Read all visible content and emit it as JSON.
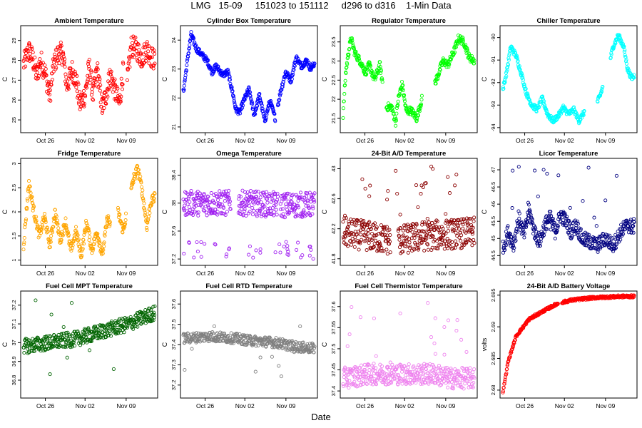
{
  "page": {
    "title": "LMG   15-09     151023 to 151112     d296 to d316    1-Min Data",
    "xlabel": "Date"
  },
  "chart_data": [
    {
      "type": "scatter",
      "title": "Ambient Temperature",
      "ylabel": "C",
      "ylim": [
        24.5,
        29.6
      ],
      "yticks": [
        25,
        26,
        27,
        28,
        29
      ],
      "xticks": [
        "Oct 26",
        "Nov 02",
        "Nov 09"
      ],
      "color": "#ff0000",
      "x_range": [
        "Oct 23",
        "Nov 12"
      ],
      "profile": [
        [
          0,
          27.8
        ],
        [
          0.04,
          28.5
        ],
        [
          0.07,
          28.1
        ],
        [
          0.1,
          27.2
        ],
        [
          0.13,
          28
        ],
        [
          0.16,
          27.5
        ],
        [
          0.2,
          26.2
        ],
        [
          0.23,
          27.8
        ],
        [
          0.27,
          28.4
        ],
        [
          0.3,
          28.3
        ],
        [
          0.33,
          26.7
        ],
        [
          0.37,
          27.5
        ],
        [
          0.4,
          27
        ],
        [
          0.43,
          25.8
        ],
        [
          0.47,
          26.3
        ],
        [
          0.5,
          27.7
        ],
        [
          0.53,
          26.2
        ],
        [
          0.56,
          27.6
        ],
        [
          0.6,
          25.6
        ],
        [
          0.63,
          26.3
        ],
        [
          0.66,
          27.3
        ],
        [
          0.7,
          26.4
        ],
        [
          0.73,
          25.8
        ],
        [
          0.76,
          27.5
        ],
        [
          0.79,
          26.9
        ],
        [
          0.82,
          28.7
        ],
        [
          0.86,
          28.6
        ],
        [
          0.9,
          28.1
        ],
        [
          0.94,
          28.6
        ],
        [
          0.97,
          28.2
        ],
        [
          1,
          28
        ]
      ],
      "spread": 0.55,
      "segments": [
        [
          0,
          0.76
        ],
        [
          0.79,
          1
        ]
      ]
    },
    {
      "type": "scatter",
      "title": "Cylinder Box Temperature",
      "ylabel": "C",
      "ylim": [
        20.9,
        24.4
      ],
      "yticks": [
        21.0,
        22.0,
        23.0,
        24.0
      ],
      "xticks": [
        "Oct 26",
        "Nov 02",
        "Nov 09"
      ],
      "color": "#0000ff",
      "x_range": [
        "Oct 23",
        "Nov 12"
      ],
      "profile": [
        [
          0,
          22.2
        ],
        [
          0.04,
          23.6
        ],
        [
          0.06,
          24.2
        ],
        [
          0.1,
          23.7
        ],
        [
          0.14,
          23.5
        ],
        [
          0.18,
          23.3
        ],
        [
          0.22,
          22.9
        ],
        [
          0.25,
          23.1
        ],
        [
          0.3,
          22.8
        ],
        [
          0.34,
          22.9
        ],
        [
          0.38,
          22.1
        ],
        [
          0.4,
          21.6
        ],
        [
          0.43,
          21.5
        ],
        [
          0.46,
          21.9
        ],
        [
          0.5,
          22.3
        ],
        [
          0.54,
          21.4
        ],
        [
          0.58,
          22.1
        ],
        [
          0.62,
          21.2
        ],
        [
          0.66,
          21.9
        ],
        [
          0.7,
          21.3
        ],
        [
          0.74,
          22.2
        ],
        [
          0.78,
          22.9
        ],
        [
          0.82,
          22.6
        ],
        [
          0.86,
          23.4
        ],
        [
          0.9,
          23.1
        ],
        [
          0.94,
          23.3
        ],
        [
          0.97,
          23.0
        ],
        [
          1,
          23.2
        ]
      ],
      "spread": 0.1,
      "segments": [
        [
          0,
          0.7
        ],
        [
          0.72,
          1
        ]
      ]
    },
    {
      "type": "scatter",
      "title": "Regulator Temperature",
      "ylabel": "C",
      "ylim": [
        21.2,
        23.85
      ],
      "yticks": [
        21.5,
        22.0,
        22.5,
        23.0,
        23.5
      ],
      "xticks": [
        "Oct 26",
        "Nov 02",
        "Nov 09"
      ],
      "color": "#00ff00",
      "x_range": [
        "Oct 23",
        "Nov 12"
      ],
      "profile": [
        [
          0,
          21.6
        ],
        [
          0.02,
          22.7
        ],
        [
          0.04,
          23.2
        ],
        [
          0.06,
          23.6
        ],
        [
          0.09,
          23.2
        ],
        [
          0.13,
          23.0
        ],
        [
          0.17,
          22.7
        ],
        [
          0.2,
          22.9
        ],
        [
          0.24,
          22.5
        ],
        [
          0.28,
          22.9
        ],
        [
          0.31,
          22.2
        ],
        [
          0.33,
          21.8
        ],
        [
          0.37,
          21.8
        ],
        [
          0.4,
          21.4
        ],
        [
          0.42,
          22.0
        ],
        [
          0.45,
          22.4
        ],
        [
          0.48,
          21.7
        ],
        [
          0.52,
          21.7
        ],
        [
          0.56,
          21.5
        ],
        [
          0.6,
          22.0
        ],
        [
          0.66,
          22.1
        ],
        [
          0.72,
          22.6
        ],
        [
          0.76,
          23.0
        ],
        [
          0.8,
          22.9
        ],
        [
          0.85,
          23.3
        ],
        [
          0.88,
          23.6
        ],
        [
          0.92,
          23.5
        ],
        [
          0.96,
          23.1
        ],
        [
          1,
          23.0
        ]
      ],
      "spread": 0.1,
      "segments": [
        [
          0,
          0.3
        ],
        [
          0.33,
          0.6
        ],
        [
          0.7,
          1
        ]
      ]
    },
    {
      "type": "scatter",
      "title": "Chiller Temperature",
      "ylabel": "C",
      "ylim": [
        -94.1,
        -89.6
      ],
      "yticks": [
        -94,
        -93,
        -92,
        -91,
        -90
      ],
      "xticks": [
        "Oct 26",
        "Nov 02",
        "Nov 09"
      ],
      "color": "#00ffff",
      "x_range": [
        "Oct 23",
        "Nov 12"
      ],
      "profile": [
        [
          0,
          -92.3
        ],
        [
          0.03,
          -91.5
        ],
        [
          0.06,
          -90.4
        ],
        [
          0.1,
          -90.8
        ],
        [
          0.14,
          -91.6
        ],
        [
          0.18,
          -92.5
        ],
        [
          0.22,
          -93.0
        ],
        [
          0.26,
          -93.2
        ],
        [
          0.3,
          -92.7
        ],
        [
          0.34,
          -93.4
        ],
        [
          0.38,
          -93.7
        ],
        [
          0.42,
          -93.5
        ],
        [
          0.46,
          -93.1
        ],
        [
          0.5,
          -93.4
        ],
        [
          0.54,
          -93.2
        ],
        [
          0.58,
          -93.7
        ],
        [
          0.62,
          -93.3
        ],
        [
          0.66,
          -92.9
        ],
        [
          0.7,
          -93.1
        ],
        [
          0.74,
          -92.6
        ],
        [
          0.8,
          -91.4
        ],
        [
          0.84,
          -90.4
        ],
        [
          0.88,
          -89.9
        ],
        [
          0.92,
          -90.4
        ],
        [
          0.95,
          -91.4
        ],
        [
          0.98,
          -91.8
        ],
        [
          1,
          -91.7
        ]
      ],
      "spread": 0.12,
      "segments": [
        [
          0,
          0.62
        ],
        [
          0.72,
          0.76
        ],
        [
          0.82,
          1
        ]
      ]
    },
    {
      "type": "scatter",
      "title": "Fridge Temperature",
      "ylabel": "C",
      "ylim": [
        0.95,
        3.05
      ],
      "yticks": [
        1.0,
        1.5,
        2.0,
        2.5,
        3.0
      ],
      "xticks": [
        "Oct 26",
        "Nov 02",
        "Nov 09"
      ],
      "color": "#ffa500",
      "x_range": [
        "Oct 23",
        "Nov 12"
      ],
      "profile": [
        [
          0,
          1.3
        ],
        [
          0.04,
          2.6
        ],
        [
          0.08,
          2.0
        ],
        [
          0.12,
          1.5
        ],
        [
          0.16,
          1.9
        ],
        [
          0.2,
          1.3
        ],
        [
          0.24,
          2.0
        ],
        [
          0.28,
          1.4
        ],
        [
          0.32,
          1.8
        ],
        [
          0.36,
          1.2
        ],
        [
          0.4,
          1.6
        ],
        [
          0.44,
          1.1
        ],
        [
          0.48,
          1.8
        ],
        [
          0.52,
          1.2
        ],
        [
          0.56,
          1.6
        ],
        [
          0.6,
          1.1
        ],
        [
          0.64,
          1.9
        ],
        [
          0.68,
          1.5
        ],
        [
          0.72,
          2.0
        ],
        [
          0.76,
          1.6
        ],
        [
          0.8,
          2.2
        ],
        [
          0.84,
          2.7
        ],
        [
          0.87,
          2.9
        ],
        [
          0.9,
          2.5
        ],
        [
          0.94,
          1.7
        ],
        [
          0.97,
          2.2
        ],
        [
          1,
          2.3
        ]
      ],
      "spread": 0.1,
      "segments": [
        [
          0,
          0.66
        ],
        [
          0.72,
          0.78
        ],
        [
          0.82,
          1
        ]
      ]
    },
    {
      "type": "scatter",
      "title": "Omega Temperature",
      "ylabel": "C",
      "ylim": [
        37.15,
        38.6
      ],
      "yticks": [
        37.2,
        37.6,
        38.0,
        38.4
      ],
      "xticks": [
        "Oct 26",
        "Nov 02",
        "Nov 09"
      ],
      "color": "#a020f0",
      "x_range": [
        "Oct 23",
        "Nov 12"
      ],
      "profile": [
        [
          0,
          38.0
        ],
        [
          0.25,
          38.0
        ],
        [
          0.5,
          38.0
        ],
        [
          0.75,
          37.97
        ],
        [
          1,
          37.98
        ]
      ],
      "spread": 0.18,
      "segments": [
        [
          0,
          0.36
        ],
        [
          0.42,
          0.72
        ],
        [
          0.74,
          1
        ]
      ],
      "outlier_range": [
        37.2,
        37.45
      ],
      "outliers": 40
    },
    {
      "type": "scatter",
      "title": "24-Bit A/D Temperature",
      "ylabel": "C",
      "ylim": [
        41.75,
        43.1
      ],
      "yticks": [
        41.8,
        42.2,
        42.6,
        43.0
      ],
      "xticks": [
        "Oct 26",
        "Nov 02",
        "Nov 09"
      ],
      "color": "#8b0000",
      "x_range": [
        "Oct 23",
        "Nov 12"
      ],
      "profile": [
        [
          0,
          42.15
        ],
        [
          0.2,
          42.1
        ],
        [
          0.35,
          42.05
        ],
        [
          0.45,
          42.05
        ],
        [
          0.6,
          42.1
        ],
        [
          0.75,
          42.12
        ],
        [
          1,
          42.15
        ]
      ],
      "spread": 0.2,
      "segments": [
        [
          0,
          0.36
        ],
        [
          0.42,
          1
        ]
      ],
      "outlier_range": [
        42.3,
        43.05
      ],
      "outliers": 25
    },
    {
      "type": "scatter",
      "title": "Licor Temperature",
      "ylabel": "C",
      "ylim": [
        44.3,
        47.25
      ],
      "yticks": [
        44.5,
        45.0,
        45.5,
        46.0,
        46.5,
        47.0
      ],
      "xticks": [
        "Oct 26",
        "Nov 02",
        "Nov 09"
      ],
      "color": "#000080",
      "x_range": [
        "Oct 23",
        "Nov 12"
      ],
      "profile": [
        [
          0,
          44.7
        ],
        [
          0.04,
          45.2
        ],
        [
          0.08,
          44.8
        ],
        [
          0.12,
          45.6
        ],
        [
          0.16,
          45.1
        ],
        [
          0.2,
          45.8
        ],
        [
          0.24,
          45.2
        ],
        [
          0.28,
          44.9
        ],
        [
          0.32,
          45.4
        ],
        [
          0.36,
          45.6
        ],
        [
          0.4,
          45.2
        ],
        [
          0.44,
          45.7
        ],
        [
          0.48,
          45.5
        ],
        [
          0.52,
          45.2
        ],
        [
          0.56,
          45.4
        ],
        [
          0.6,
          45.0
        ],
        [
          0.66,
          44.9
        ],
        [
          0.72,
          44.8
        ],
        [
          0.78,
          45.0
        ],
        [
          0.84,
          44.8
        ],
        [
          0.9,
          45.2
        ],
        [
          0.95,
          45.4
        ],
        [
          1,
          45.3
        ]
      ],
      "spread": 0.22,
      "segments": [
        [
          0,
          1
        ]
      ],
      "outlier_range": [
        45.2,
        47.2
      ],
      "outliers": 20
    },
    {
      "type": "scatter",
      "title": "Fuel Cell MPT Temperature",
      "ylabel": "C",
      "ylim": [
        36.72,
        37.26
      ],
      "yticks": [
        36.8,
        36.9,
        37.0,
        37.1,
        37.2
      ],
      "xticks": [
        "Oct 26",
        "Nov 02",
        "Nov 09"
      ],
      "color": "#006400",
      "x_range": [
        "Oct 23",
        "Nov 12"
      ],
      "profile": [
        [
          0,
          36.98
        ],
        [
          0.2,
          37.0
        ],
        [
          0.4,
          37.02
        ],
        [
          0.45,
          37.03
        ],
        [
          0.6,
          37.06
        ],
        [
          0.8,
          37.1
        ],
        [
          1,
          37.16
        ]
      ],
      "spread": 0.04,
      "segments": [
        [
          0,
          1
        ]
      ],
      "outlier_range": [
        36.74,
        37.24
      ],
      "outliers": 10
    },
    {
      "type": "scatter",
      "title": "Fuel Cell RTD Temperature",
      "ylabel": "C",
      "ylim": [
        37.15,
        37.65
      ],
      "yticks": [
        37.2,
        37.3,
        37.4,
        37.5,
        37.6
      ],
      "xticks": [
        "Oct 26",
        "Nov 02",
        "Nov 09"
      ],
      "color": "#808080",
      "x_range": [
        "Oct 23",
        "Nov 12"
      ],
      "profile": [
        [
          0,
          37.43
        ],
        [
          0.2,
          37.44
        ],
        [
          0.4,
          37.43
        ],
        [
          0.5,
          37.42
        ],
        [
          0.7,
          37.41
        ],
        [
          0.85,
          37.39
        ],
        [
          1,
          37.38
        ]
      ],
      "spread": 0.025,
      "segments": [
        [
          0,
          1
        ]
      ],
      "outlier_range": [
        37.18,
        37.62
      ],
      "outliers": 12
    },
    {
      "type": "scatter",
      "title": "Fuel Cell Thermistor Temperature",
      "ylabel": "C",
      "ylim": [
        37.39,
        37.63
      ],
      "yticks": [
        37.4,
        37.45,
        37.5,
        37.55,
        37.6
      ],
      "xticks": [
        "Oct 26",
        "Nov 02",
        "Nov 09"
      ],
      "color": "#ee82ee",
      "x_range": [
        "Oct 23",
        "Nov 12"
      ],
      "profile": [
        [
          0,
          37.43
        ],
        [
          0.2,
          37.44
        ],
        [
          0.4,
          37.44
        ],
        [
          0.6,
          37.44
        ],
        [
          0.7,
          37.44
        ],
        [
          0.8,
          37.43
        ],
        [
          1,
          37.43
        ]
      ],
      "spread": 0.025,
      "segments": [
        [
          0,
          1
        ]
      ],
      "outlier_range": [
        37.46,
        37.62
      ],
      "outliers": 20
    },
    {
      "type": "scatter",
      "title": "24-Bit A/D Battery Voltage",
      "ylabel": "volts",
      "ylim": [
        2.6792,
        2.6952
      ],
      "yticks": [
        2.68,
        2.685,
        2.69,
        2.695
      ],
      "xticks": [
        "Oct 26",
        "Nov 02",
        "Nov 09"
      ],
      "color": "#ff0000",
      "x_range": [
        "Oct 23",
        "Nov 12"
      ],
      "profile": [
        [
          0,
          2.6797
        ],
        [
          0.04,
          2.6845
        ],
        [
          0.1,
          2.6885
        ],
        [
          0.2,
          2.6912
        ],
        [
          0.3,
          2.6924
        ],
        [
          0.4,
          2.6935
        ],
        [
          0.44,
          2.6938
        ],
        [
          0.52,
          2.6942
        ],
        [
          0.6,
          2.6944
        ],
        [
          0.7,
          2.6946
        ],
        [
          0.8,
          2.6947
        ],
        [
          0.9,
          2.6948
        ],
        [
          1,
          2.6948
        ]
      ],
      "spread": 0.0002,
      "segments": [
        [
          0,
          0.42
        ],
        [
          0.45,
          1
        ]
      ]
    }
  ]
}
